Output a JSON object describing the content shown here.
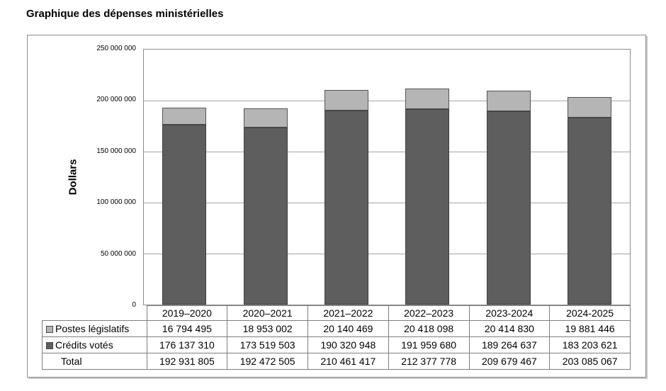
{
  "title": "Graphique des dépenses ministérielles",
  "chart_data": {
    "type": "bar",
    "stacked": true,
    "title": "Graphique des dépenses ministérielles",
    "ylabel": "Dollars",
    "xlabel": "",
    "categories": [
      "2019–2020",
      "2020–2021",
      "2021–2022",
      "2022–2023",
      "2023-2024",
      "2024-2025"
    ],
    "series": [
      {
        "name": "Postes législatifs",
        "stack_position": "top",
        "color": "#b5b5b5",
        "border_color": "#545454",
        "values": [
          16794495,
          18953002,
          20140469,
          20418098,
          20414830,
          19881446
        ]
      },
      {
        "name": "Crédits votés",
        "stack_position": "bottom",
        "color": "#5e5e5e",
        "border_color": "#3f3f3f",
        "values": [
          176137310,
          173519503,
          190320948,
          191959680,
          189264637,
          183203621
        ]
      }
    ],
    "totals": [
      192931805,
      192472505,
      210461417,
      212377778,
      209679467,
      203085067
    ],
    "ylim": [
      0,
      250000000
    ],
    "ytick_interval": 50000000,
    "ytick_labels": [
      "250 000 000",
      "200 000 000",
      "150 000 000",
      "100 000 000",
      "50 000 000",
      "0"
    ],
    "grid": true,
    "grid_color": "#a6a6a6",
    "legend_position": "table-rows-left"
  },
  "table": {
    "corner_label": "",
    "rows": [
      {
        "label": "Postes législatifs",
        "swatch_color": "#b5b5b5",
        "values": [
          "16 794 495",
          "18 953 002",
          "20 140 469",
          "20 418 098",
          "20 414 830",
          "19 881 446"
        ]
      },
      {
        "label": "Crédits votés",
        "swatch_color": "#5e5e5e",
        "values": [
          "176 137 310",
          "173 519 503",
          "190 320 948",
          "191 959 680",
          "189 264 637",
          "183 203 621"
        ]
      },
      {
        "label": "Total",
        "swatch_color": null,
        "values": [
          "192 931 805",
          "192 472 505",
          "210 461 417",
          "212 377 778",
          "209 679 467",
          "203 085 067"
        ]
      }
    ]
  }
}
